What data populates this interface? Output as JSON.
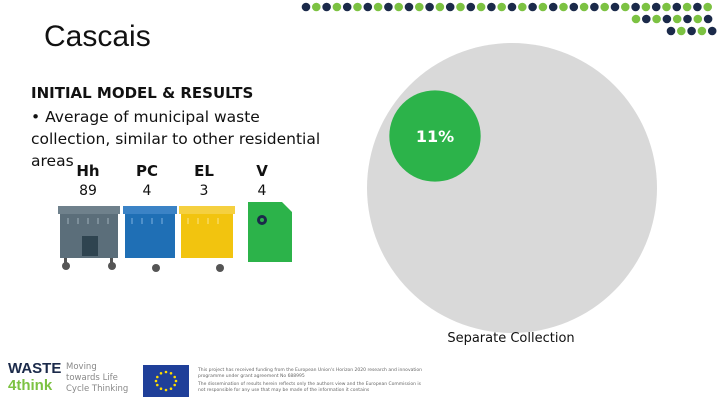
{
  "slide": {
    "title": "Cascais",
    "heading": "INITIAL MODEL & RESULTS",
    "bullet": "• Average of municipal waste collection, similar to other residential areas",
    "bins": [
      {
        "code": "Hh",
        "value": "89",
        "color": "#5b6e7a"
      },
      {
        "code": "PC",
        "value": "4",
        "color": "#1f6fb5"
      },
      {
        "code": "EL",
        "value": "3",
        "color": "#f2c40f"
      },
      {
        "code": "V",
        "value": "4",
        "color": "#2cb34a"
      }
    ]
  },
  "chart_data": {
    "type": "pie",
    "slices": [
      {
        "label": "Separate Collection",
        "percent": 11,
        "color": "#2cb34a"
      },
      {
        "label": "",
        "percent": 89,
        "color": "#d9d9d9"
      }
    ],
    "data_label": "11%",
    "caption": "Separate Collection"
  },
  "branding": {
    "logo_word1": "WASTE",
    "logo_word2": "4think",
    "tagline": "Moving towards Life Cycle Thinking",
    "colors": {
      "navy": "#1b2a4a",
      "green": "#7cc242"
    }
  },
  "footer": {
    "funding_text": "This project has received funding from the European Union's Horizon 2020 research and innovation programme under grant agreement No 688995",
    "disclaimer": "The dissemination of results herein reflects only the authors view and the European Commission is not responsible for any use that may be made of the information it contains"
  }
}
